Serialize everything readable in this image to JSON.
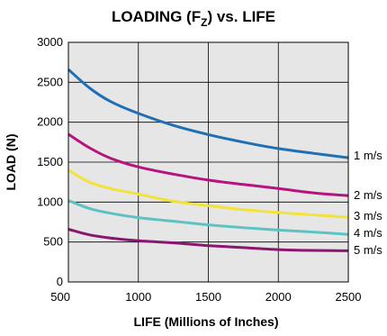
{
  "chart_data": {
    "type": "line",
    "title": {
      "main": "LOADING (F",
      "sub": "Z",
      "rest": ") vs. LIFE"
    },
    "xlabel": "LIFE (Millions of Inches)",
    "ylabel": "LOAD (N)",
    "xlim": [
      500,
      2500
    ],
    "ylim": [
      0,
      3000
    ],
    "xticks": [
      500,
      1000,
      1500,
      2000,
      2500
    ],
    "yticks": [
      0,
      500,
      1000,
      1500,
      2000,
      2500,
      3000
    ],
    "grid": true,
    "plot_background": "#e6e6e6",
    "series": [
      {
        "name": "1 m/s",
        "color": "#1f6fb5",
        "points": [
          [
            500,
            2660
          ],
          [
            650,
            2430
          ],
          [
            800,
            2260
          ],
          [
            1000,
            2110
          ],
          [
            1250,
            1960
          ],
          [
            1500,
            1845
          ],
          [
            1750,
            1750
          ],
          [
            2000,
            1670
          ],
          [
            2250,
            1610
          ],
          [
            2500,
            1555
          ]
        ]
      },
      {
        "name": "2 m/s",
        "color": "#b5147f",
        "points": [
          [
            500,
            1850
          ],
          [
            650,
            1680
          ],
          [
            800,
            1550
          ],
          [
            1000,
            1440
          ],
          [
            1250,
            1350
          ],
          [
            1500,
            1275
          ],
          [
            1750,
            1220
          ],
          [
            2000,
            1170
          ],
          [
            2250,
            1115
          ],
          [
            2500,
            1080
          ]
        ]
      },
      {
        "name": "3 m/s",
        "color": "#f2e23a",
        "points": [
          [
            500,
            1400
          ],
          [
            650,
            1250
          ],
          [
            800,
            1170
          ],
          [
            1000,
            1100
          ],
          [
            1250,
            1010
          ],
          [
            1500,
            955
          ],
          [
            1750,
            905
          ],
          [
            2000,
            870
          ],
          [
            2250,
            840
          ],
          [
            2500,
            810
          ]
        ]
      },
      {
        "name": "4 m/s",
        "color": "#5fc2c2",
        "points": [
          [
            500,
            1020
          ],
          [
            650,
            920
          ],
          [
            800,
            860
          ],
          [
            1000,
            805
          ],
          [
            1250,
            760
          ],
          [
            1500,
            715
          ],
          [
            1750,
            680
          ],
          [
            2000,
            650
          ],
          [
            2250,
            625
          ],
          [
            2500,
            595
          ]
        ]
      },
      {
        "name": "5 m/s",
        "color": "#8a1670",
        "points": [
          [
            500,
            660
          ],
          [
            650,
            590
          ],
          [
            800,
            550
          ],
          [
            1000,
            515
          ],
          [
            1250,
            490
          ],
          [
            1500,
            455
          ],
          [
            1750,
            430
          ],
          [
            2000,
            405
          ],
          [
            2250,
            395
          ],
          [
            2500,
            390
          ]
        ]
      }
    ]
  }
}
